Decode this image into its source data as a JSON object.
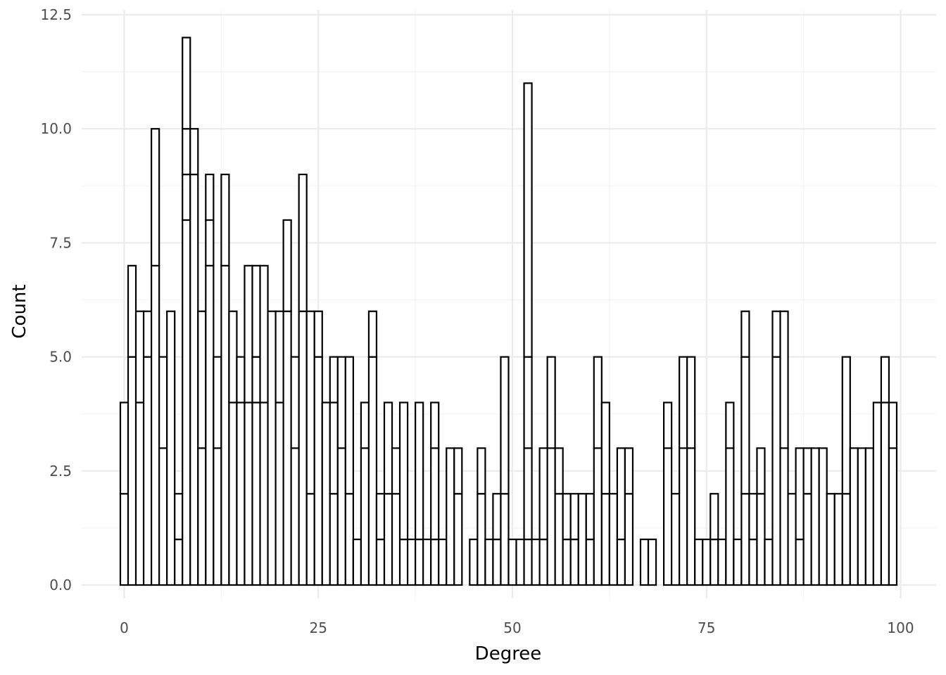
{
  "chart_data": {
    "type": "bar",
    "title": "",
    "xlabel": "Degree",
    "ylabel": "Count",
    "xlim": [
      -1,
      101
    ],
    "ylim": [
      0,
      12.5
    ],
    "x_ticks": [
      "0",
      "25",
      "50",
      "75",
      "100"
    ],
    "y_ticks": [
      "0.0",
      "2.5",
      "5.0",
      "7.5",
      "10.0",
      "12.5"
    ],
    "grid": true,
    "legend": "none",
    "stacked": true,
    "bin_width": 1,
    "x": [
      0,
      1,
      2,
      3,
      4,
      5,
      6,
      7,
      8,
      9,
      10,
      11,
      12,
      13,
      14,
      15,
      16,
      17,
      18,
      19,
      20,
      21,
      22,
      23,
      24,
      25,
      26,
      27,
      28,
      29,
      30,
      31,
      32,
      33,
      34,
      35,
      36,
      37,
      38,
      39,
      40,
      41,
      42,
      43,
      45,
      46,
      47,
      48,
      49,
      50,
      51,
      52,
      53,
      54,
      55,
      56,
      57,
      58,
      59,
      60,
      61,
      62,
      63,
      64,
      65,
      67,
      68,
      70,
      71,
      72,
      73,
      74,
      75,
      76,
      77,
      78,
      79,
      80,
      81,
      82,
      83,
      84,
      85,
      86,
      87,
      88,
      89,
      90,
      91,
      92,
      93,
      94,
      95,
      96,
      97,
      98,
      99
    ],
    "series": [
      {
        "values": [
          2,
          5,
          4,
          5,
          7,
          3,
          6,
          1,
          8,
          9,
          3,
          7,
          3,
          7,
          4,
          4,
          4,
          4,
          4,
          6,
          4,
          6,
          3,
          6,
          2,
          5,
          4,
          2,
          3,
          2,
          1,
          3,
          5,
          1,
          2,
          2,
          1,
          1,
          1,
          1,
          1,
          1,
          3,
          2,
          1,
          2,
          1,
          1,
          2,
          1,
          1,
          1,
          1,
          1,
          3,
          2,
          1,
          1,
          2,
          1,
          3,
          2,
          2,
          1,
          2,
          1,
          1,
          3,
          2,
          3,
          3,
          1,
          1,
          1,
          1,
          3,
          1,
          2,
          1,
          2,
          1,
          5,
          3,
          2,
          1,
          2,
          3,
          3,
          2,
          2,
          2,
          3,
          3,
          3,
          4,
          4,
          3
        ]
      },
      {
        "values": [
          2,
          2,
          2,
          1,
          3,
          2,
          0,
          1,
          1,
          1,
          3,
          1,
          2,
          2,
          2,
          1,
          3,
          1,
          3,
          0,
          2,
          2,
          2,
          3,
          4,
          1,
          0,
          2,
          2,
          3,
          0,
          1,
          1,
          1,
          2,
          1,
          3,
          0,
          3,
          0,
          2,
          0,
          0,
          1,
          0,
          1,
          0,
          1,
          3,
          0,
          0,
          2,
          0,
          2,
          2,
          1,
          1,
          1,
          0,
          1,
          2,
          2,
          0,
          2,
          1,
          0,
          0,
          1,
          0,
          2,
          2,
          0,
          0,
          1,
          0,
          1,
          0,
          3,
          1,
          1,
          0,
          1,
          3,
          0,
          2,
          1,
          0,
          0,
          0,
          0,
          3,
          0,
          0,
          0,
          0,
          1,
          1
        ]
      },
      {
        "values": [
          0,
          0,
          0,
          0,
          0,
          0,
          0,
          0,
          1,
          0,
          0,
          1,
          0,
          0,
          0,
          0,
          0,
          2,
          0,
          0,
          0,
          0,
          0,
          0,
          0,
          0,
          0,
          1,
          0,
          0,
          0,
          0,
          0,
          0,
          0,
          0,
          0,
          0,
          0,
          0,
          1,
          0,
          0,
          0,
          0,
          0,
          0,
          0,
          0,
          0,
          0,
          2,
          0,
          0,
          0,
          0,
          0,
          0,
          0,
          0,
          0,
          0,
          0,
          0,
          0,
          0,
          0,
          0,
          0,
          0,
          0,
          0,
          0,
          0,
          0,
          0,
          0,
          1,
          0,
          0,
          0,
          0,
          0,
          0,
          0,
          0,
          0,
          0,
          0,
          0,
          0,
          0,
          0,
          0,
          0,
          0,
          0
        ]
      },
      {
        "values": [
          0,
          0,
          0,
          0,
          0,
          0,
          0,
          0,
          2,
          0,
          0,
          0,
          0,
          0,
          0,
          0,
          0,
          0,
          0,
          0,
          0,
          0,
          0,
          0,
          0,
          0,
          0,
          0,
          0,
          0,
          0,
          0,
          0,
          0,
          0,
          0,
          0,
          0,
          0,
          0,
          0,
          0,
          0,
          0,
          0,
          0,
          0,
          0,
          0,
          0,
          0,
          6,
          0,
          0,
          0,
          0,
          0,
          0,
          0,
          0,
          0,
          0,
          0,
          0,
          0,
          0,
          0,
          0,
          0,
          0,
          0,
          0,
          0,
          0,
          0,
          0,
          0,
          0,
          0,
          0,
          0,
          0,
          0,
          0,
          0,
          0,
          0,
          0,
          0,
          0,
          0,
          0,
          0,
          0,
          0,
          0,
          0
        ]
      }
    ]
  }
}
